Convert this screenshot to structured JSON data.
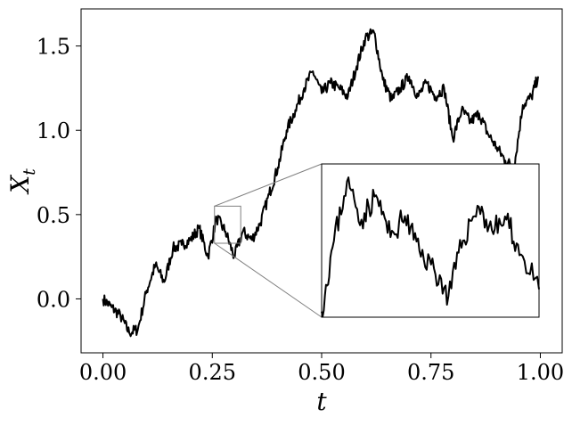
{
  "chart_data": {
    "type": "line",
    "xlabel": "t",
    "ylabel_main": "X",
    "ylabel_sub": "t",
    "xlim": [
      -0.05,
      1.05
    ],
    "ylim": [
      -0.32,
      1.72
    ],
    "x_ticks": [
      0.0,
      0.25,
      0.5,
      0.75,
      1.0
    ],
    "x_tick_labels": [
      "0.00",
      "0.25",
      "0.50",
      "0.75",
      "1.00"
    ],
    "y_ticks": [
      0.0,
      0.5,
      1.0,
      1.5
    ],
    "y_tick_labels": [
      "0.0",
      "0.5",
      "1.0",
      "1.5"
    ],
    "grid": false,
    "colors": {
      "line": "#000000",
      "connector": "#808080",
      "box": "#808080"
    },
    "series": [
      {
        "x": [
          0.0,
          0.02,
          0.04,
          0.06,
          0.08,
          0.1,
          0.12,
          0.14,
          0.16,
          0.18,
          0.2,
          0.22,
          0.24,
          0.26,
          0.28,
          0.3,
          0.32,
          0.34,
          0.36,
          0.38,
          0.4,
          0.42,
          0.44,
          0.46,
          0.48,
          0.5,
          0.52,
          0.54,
          0.56,
          0.58,
          0.6,
          0.62,
          0.64,
          0.66,
          0.68,
          0.7,
          0.72,
          0.74,
          0.76,
          0.78,
          0.8,
          0.82,
          0.84,
          0.86,
          0.88,
          0.9,
          0.92,
          0.94,
          0.96,
          0.98,
          0.995
        ],
        "y": [
          0.0,
          -0.05,
          -0.1,
          -0.2,
          -0.18,
          0.05,
          0.2,
          0.1,
          0.3,
          0.32,
          0.35,
          0.42,
          0.25,
          0.48,
          0.4,
          0.25,
          0.4,
          0.35,
          0.45,
          0.62,
          0.78,
          1.0,
          1.12,
          1.25,
          1.35,
          1.22,
          1.28,
          1.25,
          1.2,
          1.38,
          1.55,
          1.58,
          1.3,
          1.18,
          1.25,
          1.32,
          1.2,
          1.28,
          1.2,
          1.25,
          0.95,
          1.12,
          1.05,
          1.1,
          0.98,
          0.9,
          0.82,
          0.78,
          1.15,
          1.2,
          1.32
        ]
      }
    ],
    "zoom_region": {
      "xlim": [
        0.255,
        0.315
      ],
      "ylim": [
        0.33,
        0.55
      ]
    },
    "inset": {
      "x": [
        0.255,
        0.258,
        0.262,
        0.266,
        0.27,
        0.274,
        0.278,
        0.282,
        0.286,
        0.29,
        0.294,
        0.298,
        0.302,
        0.306,
        0.31,
        0.315
      ],
      "y": [
        0.338,
        0.43,
        0.525,
        0.47,
        0.505,
        0.445,
        0.475,
        0.425,
        0.4,
        0.36,
        0.44,
        0.49,
        0.455,
        0.47,
        0.42,
        0.37
      ]
    }
  }
}
